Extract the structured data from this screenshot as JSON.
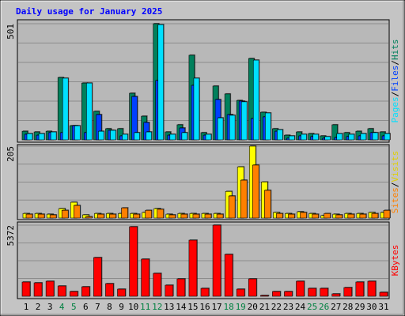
{
  "chart_data": [
    {
      "type": "bar",
      "title": "Daily usage for January 2025",
      "ylim": [
        0,
        501
      ],
      "yticks": [
        501
      ],
      "separator": "/",
      "series": [
        {
          "name": "Hits",
          "color": "#00805c",
          "values": [
            37,
            34,
            37,
            269,
            61,
            245,
            123,
            48,
            48,
            201,
            102,
            501,
            34,
            65,
            365,
            31,
            232,
            198,
            170,
            351,
            119,
            48,
            20,
            34,
            27,
            17,
            65,
            31,
            37,
            48,
            34
          ]
        },
        {
          "name": "Files",
          "color": "#0040ff",
          "values": [
            24,
            20,
            31,
            31,
            61,
            31,
            109,
            41,
            17,
            187,
            75,
            256,
            20,
            51,
            235,
            20,
            174,
            109,
            167,
            92,
            99,
            37,
            7,
            17,
            14,
            7,
            10,
            14,
            17,
            31,
            17
          ]
        },
        {
          "name": "Pages",
          "color": "#00e0ff",
          "values": [
            27,
            27,
            34,
            266,
            61,
            245,
            37,
            41,
            24,
            31,
            34,
            497,
            24,
            31,
            266,
            24,
            95,
            106,
            164,
            344,
            116,
            44,
            17,
            24,
            24,
            14,
            27,
            24,
            27,
            31,
            27
          ]
        }
      ]
    },
    {
      "type": "bar",
      "ylim": [
        0,
        205
      ],
      "yticks": [
        205
      ],
      "separator": "/",
      "series": [
        {
          "name": "Visits",
          "color": "#ffff00",
          "values": [
            13,
            13,
            11,
            27,
            45,
            9,
            13,
            13,
            13,
            13,
            16,
            27,
            11,
            13,
            13,
            13,
            13,
            76,
            146,
            205,
            103,
            16,
            13,
            18,
            13,
            7,
            11,
            13,
            13,
            16,
            16
          ]
        },
        {
          "name": "Sites",
          "color": "#ff8000",
          "values": [
            11,
            11,
            9,
            22,
            36,
            4,
            11,
            11,
            29,
            11,
            22,
            25,
            9,
            11,
            11,
            11,
            11,
            63,
            108,
            151,
            79,
            13,
            11,
            16,
            11,
            13,
            9,
            11,
            11,
            13,
            22
          ]
        }
      ]
    },
    {
      "type": "bar",
      "ylim": [
        0,
        5372
      ],
      "yticks": [
        5372
      ],
      "categories": [
        "1",
        "2",
        "3",
        "4",
        "5",
        "6",
        "7",
        "8",
        "9",
        "10",
        "11",
        "12",
        "13",
        "14",
        "15",
        "16",
        "17",
        "18",
        "19",
        "20",
        "21",
        "22",
        "23",
        "24",
        "25",
        "26",
        "27",
        "28",
        "29",
        "30",
        "31"
      ],
      "category_colors": [
        "#000",
        "#000",
        "#000",
        "#008040",
        "#008040",
        "#000",
        "#000",
        "#000",
        "#000",
        "#000",
        "#008040",
        "#008040",
        "#000",
        "#000",
        "#000",
        "#000",
        "#000",
        "#008040",
        "#008040",
        "#000",
        "#000",
        "#000",
        "#000",
        "#000",
        "#008040",
        "#008040",
        "#000",
        "#000",
        "#000",
        "#000",
        "#000"
      ],
      "series": [
        {
          "name": "KBytes",
          "color": "#ff0000",
          "values": [
            1075,
            1015,
            1134,
            776,
            358,
            716,
            2925,
            955,
            537,
            5253,
            2806,
            1731,
            836,
            1313,
            4238,
            597,
            5372,
            3164,
            537,
            1313,
            60,
            358,
            358,
            1134,
            597,
            597,
            179,
            657,
            1075,
            1134,
            298
          ]
        }
      ]
    }
  ]
}
